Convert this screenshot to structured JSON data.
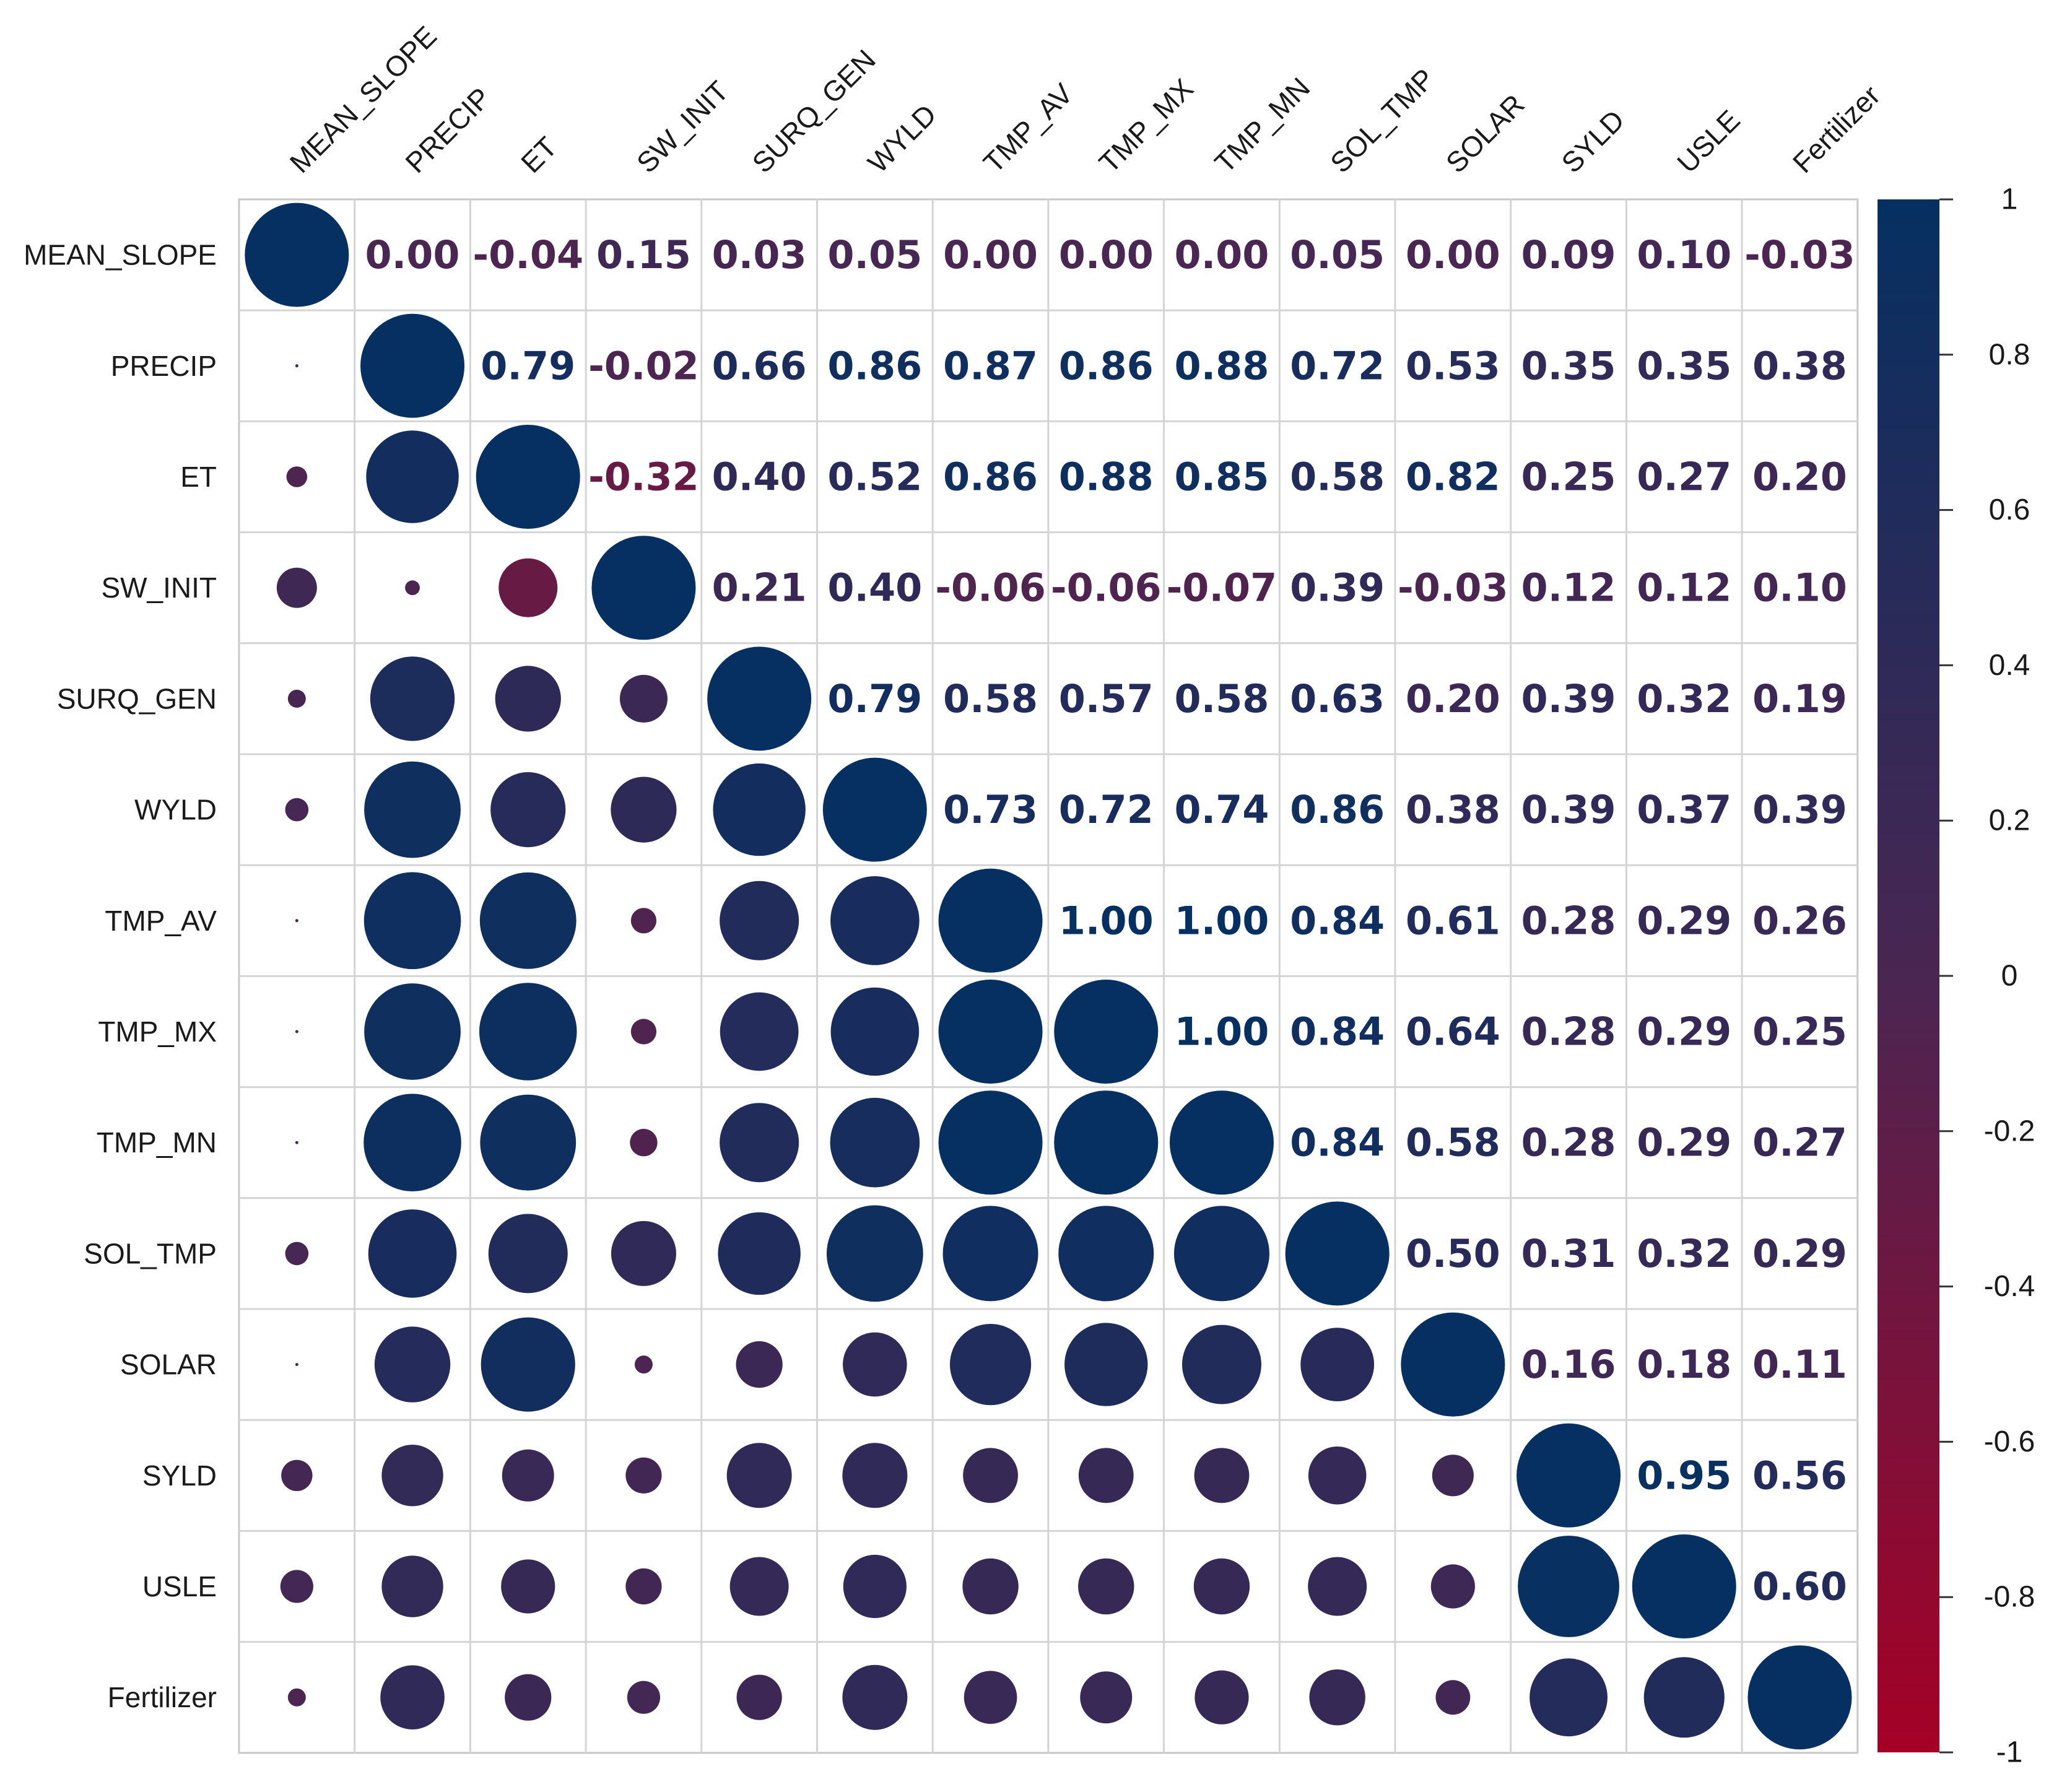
{
  "chart_data": {
    "type": "heatmap",
    "style": "corrplot-mixed",
    "lower": "circle",
    "upper": "number",
    "variables": [
      "MEAN_SLOPE",
      "PRECIP",
      "ET",
      "SW_INIT",
      "SURQ_GEN",
      "WYLD",
      "TMP_AV",
      "TMP_MX",
      "TMP_MN",
      "SOL_TMP",
      "SOLAR",
      "SYLD",
      "USLE",
      "Fertilizer"
    ],
    "matrix": [
      [
        1.0,
        0.0,
        -0.04,
        0.15,
        0.03,
        0.05,
        0.0,
        0.0,
        0.0,
        0.05,
        0.0,
        0.09,
        0.1,
        -0.03
      ],
      [
        0.0,
        1.0,
        0.79,
        -0.02,
        0.66,
        0.86,
        0.87,
        0.86,
        0.88,
        0.72,
        0.53,
        0.35,
        0.35,
        0.38
      ],
      [
        -0.04,
        0.79,
        1.0,
        -0.32,
        0.4,
        0.52,
        0.86,
        0.88,
        0.85,
        0.58,
        0.82,
        0.25,
        0.27,
        0.2
      ],
      [
        0.15,
        -0.02,
        -0.32,
        1.0,
        0.21,
        0.4,
        -0.06,
        -0.06,
        -0.07,
        0.39,
        -0.03,
        0.12,
        0.12,
        0.1
      ],
      [
        0.03,
        0.66,
        0.4,
        0.21,
        1.0,
        0.79,
        0.58,
        0.57,
        0.58,
        0.63,
        0.2,
        0.39,
        0.32,
        0.19
      ],
      [
        0.05,
        0.86,
        0.52,
        0.4,
        0.79,
        1.0,
        0.73,
        0.72,
        0.74,
        0.86,
        0.38,
        0.39,
        0.37,
        0.39
      ],
      [
        0.0,
        0.87,
        0.86,
        -0.06,
        0.58,
        0.73,
        1.0,
        1.0,
        1.0,
        0.84,
        0.61,
        0.28,
        0.29,
        0.26
      ],
      [
        0.0,
        0.86,
        0.88,
        -0.06,
        0.57,
        0.72,
        1.0,
        1.0,
        1.0,
        0.84,
        0.64,
        0.28,
        0.29,
        0.25
      ],
      [
        0.0,
        0.88,
        0.85,
        -0.07,
        0.58,
        0.74,
        1.0,
        1.0,
        1.0,
        0.84,
        0.58,
        0.28,
        0.29,
        0.27
      ],
      [
        0.05,
        0.72,
        0.58,
        0.39,
        0.63,
        0.86,
        0.84,
        0.84,
        0.84,
        1.0,
        0.5,
        0.31,
        0.32,
        0.29
      ],
      [
        0.0,
        0.53,
        0.82,
        -0.03,
        0.2,
        0.38,
        0.61,
        0.64,
        0.58,
        0.5,
        1.0,
        0.16,
        0.18,
        0.11
      ],
      [
        0.09,
        0.35,
        0.25,
        0.12,
        0.39,
        0.39,
        0.28,
        0.28,
        0.28,
        0.31,
        0.16,
        1.0,
        0.95,
        0.56
      ],
      [
        0.1,
        0.35,
        0.27,
        0.12,
        0.32,
        0.37,
        0.29,
        0.29,
        0.29,
        0.32,
        0.18,
        0.95,
        1.0,
        0.6
      ],
      [
        -0.03,
        0.38,
        0.2,
        0.1,
        0.19,
        0.39,
        0.26,
        0.25,
        0.27,
        0.29,
        0.11,
        0.56,
        0.6,
        1.0
      ]
    ],
    "colorbar": {
      "min": -1,
      "max": 1,
      "ticks": [
        "1",
        "0.8",
        "0.6",
        "0.4",
        "0.2",
        "0",
        "-0.2",
        "-0.4",
        "-0.6",
        "-0.8",
        "-1"
      ],
      "colors": {
        "neg": "#a50026",
        "mid": "#4a2652",
        "pos": "#053061"
      }
    },
    "title": "",
    "xlabel": "",
    "ylabel": ""
  }
}
